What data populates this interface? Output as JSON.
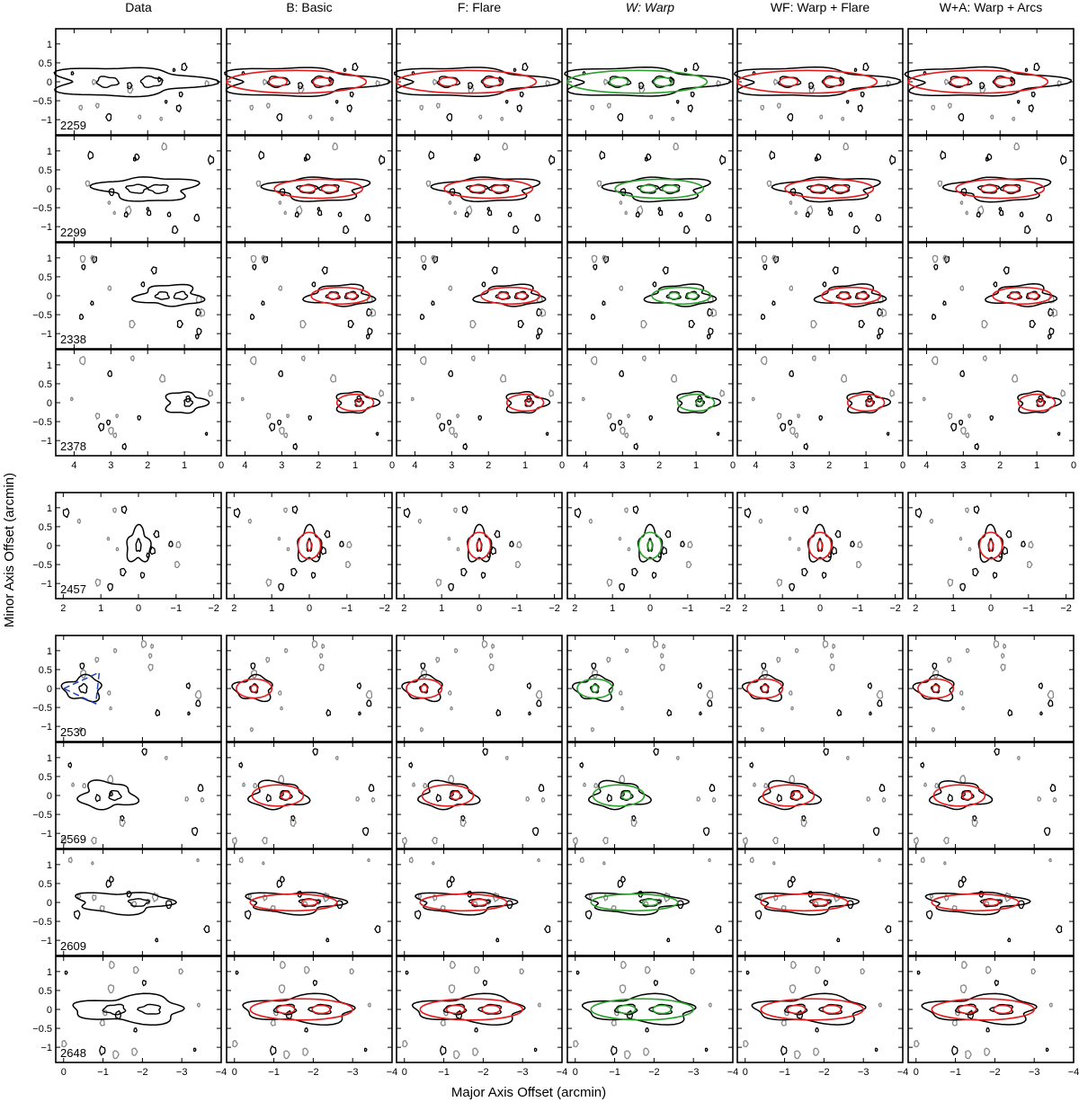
{
  "figure": {
    "xlabel": "Major Axis Offset (arcmin)",
    "ylabel": "Minor Axis Offset (arcmin)",
    "columns": [
      {
        "label": "Data",
        "italic": false
      },
      {
        "label": "B: Basic",
        "italic": false
      },
      {
        "label": "F: Flare",
        "italic": false
      },
      {
        "label": "W: Warp",
        "italic": true
      },
      {
        "label": "WF: Warp + Flare",
        "italic": false
      },
      {
        "label": "W+A: Warp + Arcs",
        "italic": false
      }
    ],
    "colors": {
      "data": "#000000",
      "model": "#e41a1c",
      "warp_model": "#2ca02c",
      "negative": "#888888",
      "beam": "#1f3fbf"
    }
  },
  "chart_data": {
    "type": "contour-grid",
    "ylim": [
      -1.4,
      1.4
    ],
    "yticks": [
      -1,
      -0.5,
      0,
      0.5,
      1
    ],
    "ytick_labels": [
      "−1",
      "−0.5",
      "0",
      "0.5",
      "1"
    ],
    "groups": [
      {
        "xlim": [
          4.5,
          0
        ],
        "xticks": [
          4,
          3,
          2,
          1,
          0
        ],
        "xtick_labels": [
          "4",
          "3",
          "2",
          "1",
          "0"
        ]
      },
      {
        "xlim": [
          2.2,
          -2.2
        ],
        "xticks": [
          2,
          1,
          0,
          -1,
          -2
        ],
        "xtick_labels": [
          "2",
          "1",
          "0",
          "−1",
          "−2"
        ]
      },
      {
        "xlim": [
          0.2,
          -4
        ],
        "xticks": [
          0,
          -1,
          -2,
          -3,
          -4
        ],
        "xtick_labels": [
          "0",
          "−1",
          "−2",
          "−3",
          "−4"
        ]
      }
    ],
    "rows": [
      {
        "label": "2259",
        "group": 0,
        "center": [
          2.6,
          0.0
        ],
        "halfwidth": 1.9,
        "halfheight": 0.3,
        "inner": [
          [
            3.1,
            0.0
          ],
          [
            1.9,
            0.0
          ]
        ],
        "beam": false
      },
      {
        "label": "2299",
        "group": 0,
        "center": [
          2.0,
          0.0
        ],
        "halfwidth": 1.2,
        "halfheight": 0.25,
        "inner": [
          [
            2.3,
            0.0
          ],
          [
            1.7,
            0.0
          ]
        ],
        "beam": false
      },
      {
        "label": "2338",
        "group": 0,
        "center": [
          1.4,
          0.0
        ],
        "halfwidth": 0.8,
        "halfheight": 0.22,
        "inner": [
          [
            1.6,
            0.0
          ],
          [
            1.1,
            0.0
          ]
        ],
        "beam": false
      },
      {
        "label": "2378",
        "group": 0,
        "center": [
          1.0,
          0.0
        ],
        "halfwidth": 0.5,
        "halfheight": 0.22,
        "inner": [
          [
            0.9,
            0.0
          ]
        ],
        "beam": false
      },
      {
        "label": "2457",
        "group": 1,
        "center": [
          0.0,
          0.0
        ],
        "halfwidth": 0.3,
        "halfheight": 0.35,
        "inner": [
          [
            0.0,
            0.0
          ]
        ],
        "beam": false
      },
      {
        "label": "2530",
        "group": 2,
        "center": [
          -0.5,
          0.0
        ],
        "halfwidth": 0.45,
        "halfheight": 0.25,
        "inner": [
          [
            -0.5,
            0.0
          ]
        ],
        "beam": true
      },
      {
        "label": "2569",
        "group": 2,
        "center": [
          -1.1,
          0.0
        ],
        "halfwidth": 0.65,
        "halfheight": 0.28,
        "inner": [
          [
            -1.3,
            0.0
          ]
        ],
        "beam": false
      },
      {
        "label": "2609",
        "group": 2,
        "center": [
          -1.5,
          0.0
        ],
        "halfwidth": 1.1,
        "halfheight": 0.22,
        "inner": [
          [
            -1.9,
            0.0
          ]
        ],
        "beam": false
      },
      {
        "label": "2648",
        "group": 2,
        "center": [
          -1.7,
          0.0
        ],
        "halfwidth": 1.3,
        "halfheight": 0.28,
        "inner": [
          [
            -1.3,
            0.0
          ],
          [
            -2.2,
            0.0
          ]
        ],
        "beam": false
      }
    ]
  }
}
